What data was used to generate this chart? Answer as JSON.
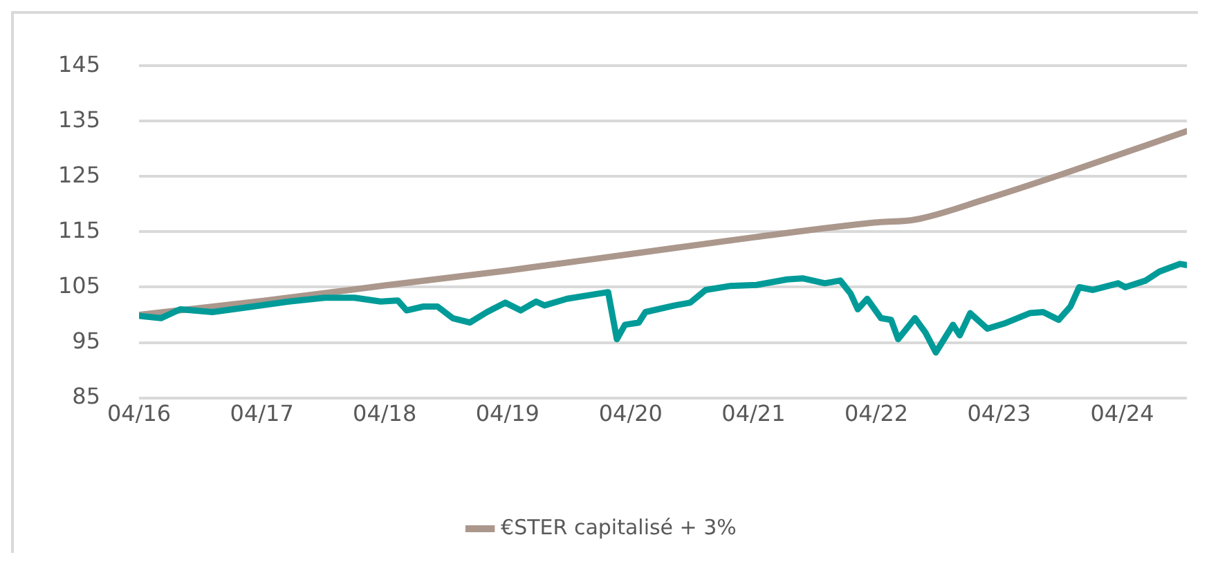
{
  "chart_data": {
    "type": "line",
    "x": [
      "2016-04-01",
      "2016-06-05",
      "2016-08-01",
      "2016-11-05",
      "2017-03-05",
      "2017-06-20",
      "2017-10-05",
      "2018-01-01",
      "2018-03-20",
      "2018-05-10",
      "2018-06-05",
      "2018-07-25",
      "2018-09-05",
      "2018-10-20",
      "2018-12-10",
      "2019-01-30",
      "2019-03-25",
      "2019-05-10",
      "2019-06-25",
      "2019-07-20",
      "2019-09-25",
      "2019-12-05",
      "2020-01-25",
      "2020-02-20",
      "2020-03-15",
      "2020-04-25",
      "2020-05-15",
      "2020-08-10",
      "2020-09-25",
      "2020-11-10",
      "2021-01-20",
      "2021-04-10",
      "2021-07-10",
      "2021-08-25",
      "2021-10-30",
      "2021-12-15",
      "2022-01-15",
      "2022-02-05",
      "2022-03-05",
      "2022-04-15",
      "2022-05-15",
      "2022-06-05",
      "2022-07-25",
      "2022-08-25",
      "2022-09-25",
      "2022-11-15",
      "2022-12-05",
      "2023-01-05",
      "2023-02-25",
      "2023-04-15",
      "2023-07-01",
      "2023-08-10",
      "2023-09-25",
      "2023-10-30",
      "2023-11-25",
      "2024-01-05",
      "2024-03-20",
      "2024-04-10",
      "2024-06-10",
      "2024-07-20",
      "2024-09-20",
      "2024-10-10"
    ],
    "series": [
      {
        "color": "#009b98",
        "values": [
          99.8,
          99.4,
          101.0,
          100.5,
          101.5,
          102.4,
          103.1,
          103.1,
          102.4,
          102.6,
          100.8,
          101.5,
          101.5,
          99.4,
          98.6,
          100.5,
          102.2,
          100.8,
          102.4,
          101.7,
          102.9,
          103.6,
          104.1,
          95.6,
          98.2,
          98.6,
          100.5,
          101.7,
          102.2,
          104.5,
          105.2,
          105.4,
          106.4,
          106.6,
          105.7,
          106.2,
          103.8,
          101.0,
          102.9,
          99.4,
          99.1,
          95.6,
          99.4,
          96.8,
          93.2,
          98.2,
          96.3,
          100.3,
          97.5,
          98.4,
          100.3,
          100.5,
          99.1,
          101.5,
          105.0,
          104.5,
          105.7,
          105.0,
          106.2,
          107.8,
          109.2,
          109.0
        ]
      },
      {
        "name": "€STER capitalisé + 3%",
        "color": "#ab978c",
        "x": [
          "2016-04-01",
          "2017-04-01",
          "2018-04-01",
          "2019-04-01",
          "2020-04-01",
          "2021-04-01",
          "2022-04-01",
          "2022-07-25",
          "2023-02-25",
          "2023-09-25",
          "2024-10-10"
        ],
        "values": [
          100.0,
          102.5,
          105.3,
          108.0,
          111.0,
          114.0,
          116.7,
          117.2,
          121.0,
          125.2,
          133.2
        ]
      }
    ],
    "xlim": [
      "2016-04-01",
      "2024-10-10"
    ],
    "xticks": [
      {
        "value": "2016-04-01",
        "label": "04/16"
      },
      {
        "value": "2017-04-01",
        "label": "04/17"
      },
      {
        "value": "2018-04-01",
        "label": "04/18"
      },
      {
        "value": "2019-04-01",
        "label": "04/19"
      },
      {
        "value": "2020-04-01",
        "label": "04/20"
      },
      {
        "value": "2021-04-01",
        "label": "04/21"
      },
      {
        "value": "2022-04-01",
        "label": "04/22"
      },
      {
        "value": "2023-04-01",
        "label": "04/23"
      },
      {
        "value": "2024-04-01",
        "label": "04/24"
      }
    ],
    "ylim": [
      85,
      145
    ],
    "yticks": [
      85,
      95,
      105,
      115,
      125,
      135,
      145
    ],
    "grid": "y",
    "legend": "bottom",
    "marker": "none",
    "line_style": "solid"
  }
}
